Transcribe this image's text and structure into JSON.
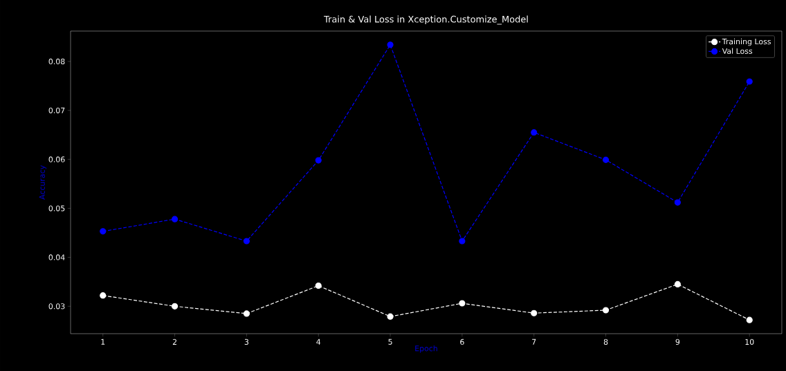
{
  "chart_data": {
    "type": "line",
    "title": "Train & Val Loss in Xception.Customize_Model",
    "xlabel": "Epoch",
    "ylabel": "Accuracy",
    "x": [
      1,
      2,
      3,
      4,
      5,
      6,
      7,
      8,
      9,
      10
    ],
    "series": [
      {
        "name": "Training Loss",
        "color": "#ffffff",
        "values": [
          0.0322,
          0.03,
          0.0285,
          0.0342,
          0.0279,
          0.0306,
          0.0286,
          0.0292,
          0.0345,
          0.0272
        ]
      },
      {
        "name": "Val Loss",
        "color": "#0000ff",
        "values": [
          0.0453,
          0.0478,
          0.0433,
          0.0598,
          0.0834,
          0.0433,
          0.0655,
          0.0599,
          0.0512,
          0.0759
        ]
      }
    ],
    "xlim": [
      0.55,
      10.45
    ],
    "ylim": [
      0.0244,
      0.0862
    ],
    "xticks": [
      1,
      2,
      3,
      4,
      5,
      6,
      7,
      8,
      9,
      10
    ],
    "yticks": [
      0.03,
      0.04,
      0.05,
      0.06,
      0.07,
      0.08
    ],
    "marker": "circle",
    "line_style": "dashed",
    "legend": "top right",
    "grid": false
  }
}
